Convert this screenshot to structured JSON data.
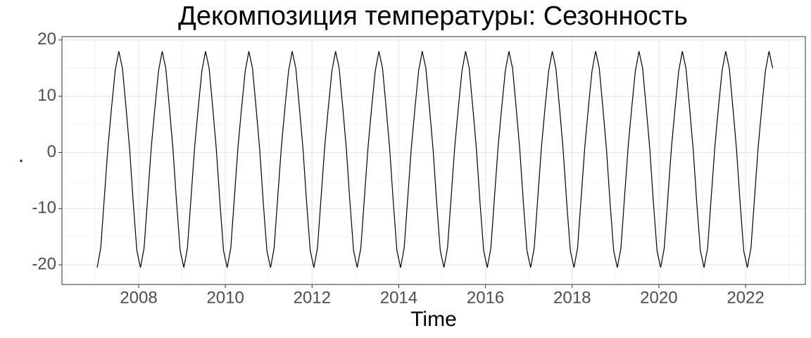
{
  "chart_data": {
    "type": "line",
    "title": "Декомпозиция температуры: Сезонность",
    "x_label": "Time",
    "y_label": ".",
    "xlim": [
      2006.23,
      2023.38
    ],
    "ylim": [
      -23.5,
      20.6
    ],
    "xticks": [
      2008,
      2010,
      2012,
      2014,
      2016,
      2018,
      2020,
      2022
    ],
    "yticks": [
      -20,
      -10,
      0,
      10,
      20
    ],
    "minor_xticks": [
      2007,
      2009,
      2011,
      2013,
      2015,
      2017,
      2019,
      2021,
      2023
    ],
    "minor_yticks": [
      -15,
      -5,
      5,
      15
    ],
    "grid": true,
    "color": "#000000",
    "x": [
      2007.042,
      2007.125,
      2007.208,
      2007.292,
      2007.375,
      2007.458,
      2007.542,
      2007.625,
      2007.708,
      2007.792,
      2007.875,
      2007.958,
      2008.042,
      2008.125,
      2008.208,
      2008.292,
      2008.375,
      2008.458,
      2008.542,
      2008.625,
      2008.708,
      2008.792,
      2008.875,
      2008.958,
      2009.042,
      2009.125,
      2009.208,
      2009.292,
      2009.375,
      2009.458,
      2009.542,
      2009.625,
      2009.708,
      2009.792,
      2009.875,
      2009.958,
      2010.042,
      2010.125,
      2010.208,
      2010.292,
      2010.375,
      2010.458,
      2010.542,
      2010.625,
      2010.708,
      2010.792,
      2010.875,
      2010.958,
      2011.042,
      2011.125,
      2011.208,
      2011.292,
      2011.375,
      2011.458,
      2011.542,
      2011.625,
      2011.708,
      2011.792,
      2011.875,
      2011.958,
      2012.042,
      2012.125,
      2012.208,
      2012.292,
      2012.375,
      2012.458,
      2012.542,
      2012.625,
      2012.708,
      2012.792,
      2012.875,
      2012.958,
      2013.042,
      2013.125,
      2013.208,
      2013.292,
      2013.375,
      2013.458,
      2013.542,
      2013.625,
      2013.708,
      2013.792,
      2013.875,
      2013.958,
      2014.042,
      2014.125,
      2014.208,
      2014.292,
      2014.375,
      2014.458,
      2014.542,
      2014.625,
      2014.708,
      2014.792,
      2014.875,
      2014.958,
      2015.042,
      2015.125,
      2015.208,
      2015.292,
      2015.375,
      2015.458,
      2015.542,
      2015.625,
      2015.708,
      2015.792,
      2015.875,
      2015.958,
      2016.042,
      2016.125,
      2016.208,
      2016.292,
      2016.375,
      2016.458,
      2016.542,
      2016.625,
      2016.708,
      2016.792,
      2016.875,
      2016.958,
      2017.042,
      2017.125,
      2017.208,
      2017.292,
      2017.375,
      2017.458,
      2017.542,
      2017.625,
      2017.708,
      2017.792,
      2017.875,
      2017.958,
      2018.042,
      2018.125,
      2018.208,
      2018.292,
      2018.375,
      2018.458,
      2018.542,
      2018.625,
      2018.708,
      2018.792,
      2018.875,
      2018.958,
      2019.042,
      2019.125,
      2019.208,
      2019.292,
      2019.375,
      2019.458,
      2019.542,
      2019.625,
      2019.708,
      2019.792,
      2019.875,
      2019.958,
      2020.042,
      2020.125,
      2020.208,
      2020.292,
      2020.375,
      2020.458,
      2020.542,
      2020.625,
      2020.708,
      2020.792,
      2020.875,
      2020.958,
      2021.042,
      2021.125,
      2021.208,
      2021.292,
      2021.375,
      2021.458,
      2021.542,
      2021.625,
      2021.708,
      2021.792,
      2021.875,
      2021.958,
      2022.042,
      2022.125,
      2022.208,
      2022.292,
      2022.375,
      2022.458,
      2022.542,
      2022.625
    ],
    "values": [
      -20.5,
      -17,
      -8,
      1,
      8,
      14.5,
      18,
      15,
      8,
      0.5,
      -9,
      -17.5,
      -20.5,
      -17,
      -8,
      1,
      8,
      14.5,
      18,
      15,
      8,
      0.5,
      -9,
      -17.5,
      -20.5,
      -17,
      -8,
      1,
      8,
      14.5,
      18,
      15,
      8,
      0.5,
      -9,
      -17.5,
      -20.5,
      -17,
      -8,
      1,
      8,
      14.5,
      18,
      15,
      8,
      0.5,
      -9,
      -17.5,
      -20.5,
      -17,
      -8,
      1,
      8,
      14.5,
      18,
      15,
      8,
      0.5,
      -9,
      -17.5,
      -20.5,
      -17,
      -8,
      1,
      8,
      14.5,
      18,
      15,
      8,
      0.5,
      -9,
      -17.5,
      -20.5,
      -17,
      -8,
      1,
      8,
      14.5,
      18,
      15,
      8,
      0.5,
      -9,
      -17.5,
      -20.5,
      -17,
      -8,
      1,
      8,
      14.5,
      18,
      15,
      8,
      0.5,
      -9,
      -17.5,
      -20.5,
      -17,
      -8,
      1,
      8,
      14.5,
      18,
      15,
      8,
      0.5,
      -9,
      -17.5,
      -20.5,
      -17,
      -8,
      1,
      8,
      14.5,
      18,
      15,
      8,
      0.5,
      -9,
      -17.5,
      -20.5,
      -17,
      -8,
      1,
      8,
      14.5,
      18,
      15,
      8,
      0.5,
      -9,
      -17.5,
      -20.5,
      -17,
      -8,
      1,
      8,
      14.5,
      18,
      15,
      8,
      0.5,
      -9,
      -17.5,
      -20.5,
      -17,
      -8,
      1,
      8,
      14.5,
      18,
      15,
      8,
      0.5,
      -9,
      -17.5,
      -20.5,
      -17,
      -8,
      1,
      8,
      14.5,
      18,
      15,
      8,
      0.5,
      -9,
      -17.5,
      -20.5,
      -17,
      -8,
      1,
      8,
      14.5,
      18,
      15,
      8,
      0.5,
      -9,
      -17.5,
      -20.5,
      -17,
      -8,
      1,
      8,
      14.5,
      18,
      15
    ]
  }
}
